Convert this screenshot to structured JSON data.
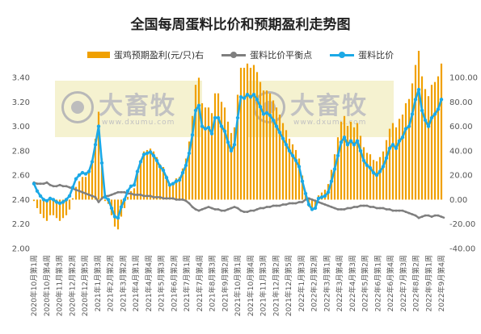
{
  "chart_data": {
    "type": "bar+line",
    "title": "全国每周蛋料比价和预期盈利走势图",
    "legend": [
      {
        "name": "蛋鸡预期盈利(元/只)右",
        "color": "#F0A000",
        "kind": "bar"
      },
      {
        "name": "蛋料比价平衡点",
        "color": "#7F7F7F",
        "kind": "line"
      },
      {
        "name": "蛋料比价",
        "color": "#1CA9E6",
        "kind": "line"
      }
    ],
    "y_left": {
      "min": 2.0,
      "max": 3.4,
      "step": 0.2,
      "ticks": [
        "2.00",
        "2.20",
        "2.40",
        "2.60",
        "2.80",
        "3.00",
        "3.20",
        "3.40"
      ]
    },
    "y_right": {
      "min": -40,
      "max": 100,
      "step": 20,
      "ticks": [
        "-40.00",
        "-20.00",
        "0.00",
        "20.00",
        "40.00",
        "60.00",
        "80.00",
        "100.00"
      ]
    },
    "x_labels": [
      "2020年10月第1周",
      "2020年10月第4周",
      "2020年11月第3周",
      "2020年12月第2周",
      "2020年12月第5周",
      "2021年1月第3周",
      "2021年2月第2周",
      "2021年3月第2周",
      "2021年4月第1周",
      "2021年4月第4周",
      "2021年5月第3周",
      "2021年6月第2周",
      "2021年7月第1周",
      "2021年7月第4周",
      "2021年8月第3周",
      "2021年9月第2周",
      "2021年10月第1周",
      "2021年10月第4周",
      "2021年11月第3周",
      "2021年12月第2周",
      "2021年12月第5周",
      "2022年1月第3周",
      "2022年2月第2周",
      "2022年3月第1周",
      "2022年3月第4周",
      "2022年4月第3周",
      "2022年5月第2周",
      "2022年6月第1周",
      "2022年6月第4周",
      "2022年7月第3周",
      "2022年8月第2周",
      "2022年9月第1周",
      "2022年9月第4周"
    ],
    "watermark": {
      "brand": "大畜牧",
      "site": "www.dxumu.com"
    },
    "series": [
      {
        "name": "蛋料比价",
        "axis": "left",
        "values": [
          2.53,
          2.47,
          2.43,
          2.4,
          2.39,
          2.41,
          2.4,
          2.38,
          2.37,
          2.38,
          2.4,
          2.43,
          2.5,
          2.57,
          2.6,
          2.62,
          2.61,
          2.63,
          2.71,
          2.85,
          3.0,
          2.7,
          2.42,
          2.4,
          2.33,
          2.26,
          2.25,
          2.34,
          2.4,
          2.47,
          2.51,
          2.52,
          2.63,
          2.71,
          2.77,
          2.78,
          2.79,
          2.76,
          2.72,
          2.67,
          2.64,
          2.58,
          2.52,
          2.53,
          2.55,
          2.56,
          2.62,
          2.68,
          2.78,
          2.93,
          3.13,
          3.17,
          3.0,
          2.98,
          2.99,
          2.94,
          3.07,
          3.07,
          3.0,
          2.96,
          2.87,
          2.8,
          2.85,
          3.07,
          3.24,
          3.23,
          3.26,
          3.24,
          3.26,
          3.22,
          3.16,
          3.1,
          3.11,
          3.09,
          3.05,
          3.0,
          2.95,
          2.9,
          2.85,
          2.8,
          2.76,
          2.72,
          2.67,
          2.55,
          2.45,
          2.36,
          2.32,
          2.33,
          2.41,
          2.42,
          2.43,
          2.46,
          2.55,
          2.65,
          2.76,
          2.87,
          2.91,
          2.85,
          2.88,
          2.85,
          2.88,
          2.8,
          2.72,
          2.68,
          2.66,
          2.62,
          2.6,
          2.63,
          2.67,
          2.74,
          2.82,
          2.85,
          2.82,
          2.88,
          2.91,
          2.98,
          3.0,
          3.1,
          3.22,
          3.3,
          3.13,
          3.05,
          3.0,
          3.07,
          3.1,
          3.14,
          3.22
        ]
      },
      {
        "name": "蛋料比价平衡点",
        "axis": "left",
        "values": [
          2.54,
          2.53,
          2.53,
          2.53,
          2.54,
          2.52,
          2.51,
          2.51,
          2.52,
          2.51,
          2.51,
          2.5,
          2.49,
          2.48,
          2.47,
          2.46,
          2.45,
          2.44,
          2.43,
          2.42,
          2.38,
          2.41,
          2.43,
          2.43,
          2.44,
          2.45,
          2.46,
          2.46,
          2.46,
          2.45,
          2.45,
          2.44,
          2.44,
          2.44,
          2.43,
          2.43,
          2.43,
          2.42,
          2.42,
          2.42,
          2.41,
          2.41,
          2.41,
          2.41,
          2.4,
          2.4,
          2.4,
          2.39,
          2.37,
          2.34,
          2.32,
          2.31,
          2.32,
          2.33,
          2.34,
          2.33,
          2.32,
          2.32,
          2.31,
          2.31,
          2.32,
          2.33,
          2.34,
          2.33,
          2.31,
          2.3,
          2.3,
          2.31,
          2.31,
          2.32,
          2.33,
          2.33,
          2.34,
          2.34,
          2.35,
          2.35,
          2.35,
          2.36,
          2.36,
          2.37,
          2.37,
          2.37,
          2.38,
          2.38,
          2.4,
          2.41,
          2.4,
          2.39,
          2.38,
          2.37,
          2.36,
          2.35,
          2.34,
          2.33,
          2.32,
          2.32,
          2.32,
          2.33,
          2.33,
          2.34,
          2.34,
          2.35,
          2.35,
          2.35,
          2.34,
          2.34,
          2.33,
          2.33,
          2.33,
          2.32,
          2.32,
          2.31,
          2.31,
          2.31,
          2.31,
          2.3,
          2.29,
          2.28,
          2.27,
          2.25,
          2.26,
          2.27,
          2.27,
          2.26,
          2.27,
          2.27,
          2.26,
          2.25
        ]
      }
    ]
  }
}
